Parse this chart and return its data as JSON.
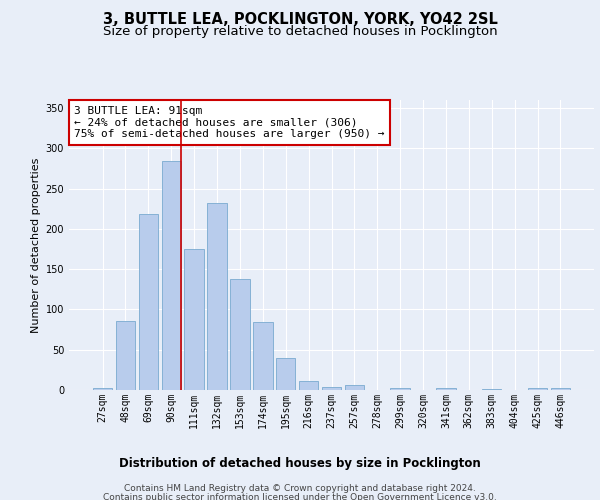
{
  "title1": "3, BUTTLE LEA, POCKLINGTON, YORK, YO42 2SL",
  "title2": "Size of property relative to detached houses in Pocklington",
  "xlabel": "Distribution of detached houses by size in Pocklington",
  "ylabel": "Number of detached properties",
  "categories": [
    "27sqm",
    "48sqm",
    "69sqm",
    "90sqm",
    "111sqm",
    "132sqm",
    "153sqm",
    "174sqm",
    "195sqm",
    "216sqm",
    "237sqm",
    "257sqm",
    "278sqm",
    "299sqm",
    "320sqm",
    "341sqm",
    "362sqm",
    "383sqm",
    "404sqm",
    "425sqm",
    "446sqm"
  ],
  "values": [
    2,
    86,
    219,
    284,
    175,
    232,
    138,
    85,
    40,
    11,
    4,
    6,
    0,
    3,
    0,
    2,
    0,
    1,
    0,
    2,
    2
  ],
  "bar_color": "#b8ccec",
  "bar_edge_color": "#7aaad0",
  "fig_bg_color": "#e8eef8",
  "ax_bg_color": "#e8eef8",
  "grid_color": "#ffffff",
  "vline_color": "#cc0000",
  "vline_x_index": 3,
  "annotation_line1": "3 BUTTLE LEA: 91sqm",
  "annotation_line2": "← 24% of detached houses are smaller (306)",
  "annotation_line3": "75% of semi-detached houses are larger (950) →",
  "annotation_box_color": "#ffffff",
  "annotation_box_edge": "#cc0000",
  "ylim": [
    0,
    360
  ],
  "yticks": [
    0,
    50,
    100,
    150,
    200,
    250,
    300,
    350
  ],
  "footer_line1": "Contains HM Land Registry data © Crown copyright and database right 2024.",
  "footer_line2": "Contains public sector information licensed under the Open Government Licence v3.0.",
  "title1_fontsize": 10.5,
  "title2_fontsize": 9.5,
  "xlabel_fontsize": 8.5,
  "ylabel_fontsize": 8,
  "tick_fontsize": 7,
  "annotation_fontsize": 8,
  "footer_fontsize": 6.5
}
